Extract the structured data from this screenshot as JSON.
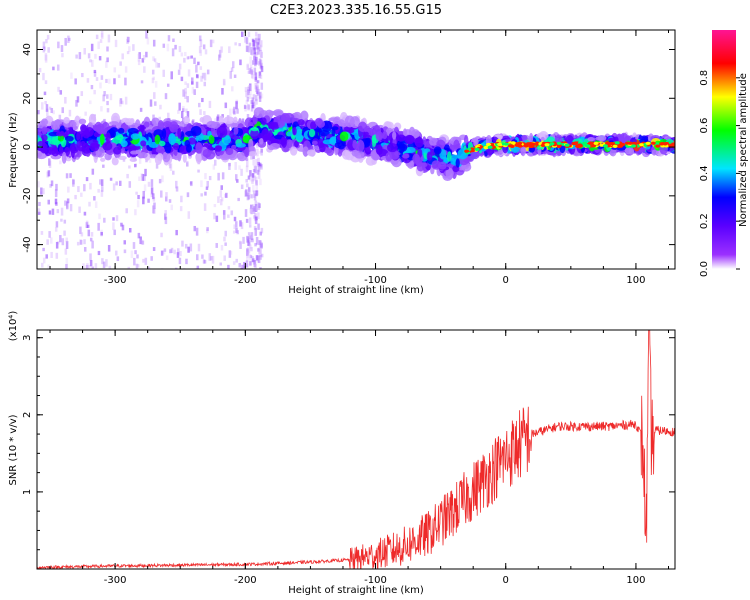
{
  "title": "C2E3.2023.335.16.55.G15",
  "chart_data": [
    {
      "type": "heatmap",
      "xlabel": "Height of straight line (km)",
      "ylabel": "Frequency (Hz)",
      "xlim": [
        -360,
        130
      ],
      "ylim": [
        -50,
        48
      ],
      "x_ticks": [
        -300,
        -200,
        -100,
        0,
        100
      ],
      "x_tick_labels": [
        "-300",
        "-200",
        "-100",
        "0",
        "100"
      ],
      "y_ticks": [
        -40,
        -20,
        0,
        20,
        40
      ],
      "y_tick_labels": [
        "-40",
        "-20",
        "0",
        "20",
        "40"
      ],
      "colorbar": {
        "label": "Normalized spectral amplitude",
        "range": [
          0,
          1
        ],
        "ticks": [
          0,
          0.2,
          0.4,
          0.6,
          0.8
        ],
        "tick_labels": [
          "0.0",
          "0.2",
          "0.4",
          "0.6",
          "0.8"
        ],
        "colors": [
          "#ffffff",
          "#7b00ff",
          "#0000ff",
          "#00e5ff",
          "#00ff00",
          "#ffff00",
          "#ff0000",
          "#ff1493"
        ]
      },
      "ridge": {
        "x": [
          -360,
          -300,
          -250,
          -200,
          -190,
          -150,
          -120,
          -100,
          -80,
          -60,
          -40,
          -30,
          -20,
          0,
          50,
          100,
          130
        ],
        "center": [
          3,
          3,
          3,
          3,
          8,
          5,
          4,
          2,
          0,
          -3,
          -5,
          -2,
          0,
          1,
          1,
          1,
          1
        ]
      }
    },
    {
      "type": "line",
      "xlabel": "Height of straight line (km)",
      "ylabel": "SNR (10 * v/v)",
      "y_multiplier": "(x10⁴)",
      "xlim": [
        -360,
        130
      ],
      "ylim": [
        0,
        3.1
      ],
      "x_ticks": [
        -300,
        -200,
        -100,
        0,
        100
      ],
      "x_tick_labels": [
        "-300",
        "-200",
        "-100",
        "0",
        "100"
      ],
      "y_ticks": [
        1,
        2,
        3
      ],
      "y_tick_labels": [
        "1",
        "2",
        "3"
      ],
      "series": [
        {
          "color": "#ee2a2a",
          "x": [
            -360,
            -300,
            -250,
            -200,
            -180,
            -150,
            -120,
            -100,
            -80,
            -60,
            -40,
            -20,
            0,
            20,
            40,
            60,
            80,
            100,
            105,
            108,
            110,
            112,
            115,
            130
          ],
          "y": [
            0.02,
            0.04,
            0.05,
            0.06,
            0.07,
            0.09,
            0.12,
            0.18,
            0.28,
            0.45,
            0.75,
            1.1,
            1.45,
            1.75,
            1.85,
            1.85,
            1.85,
            1.88,
            1.7,
            0.45,
            3.05,
            1.65,
            1.8,
            1.78
          ]
        }
      ]
    }
  ]
}
